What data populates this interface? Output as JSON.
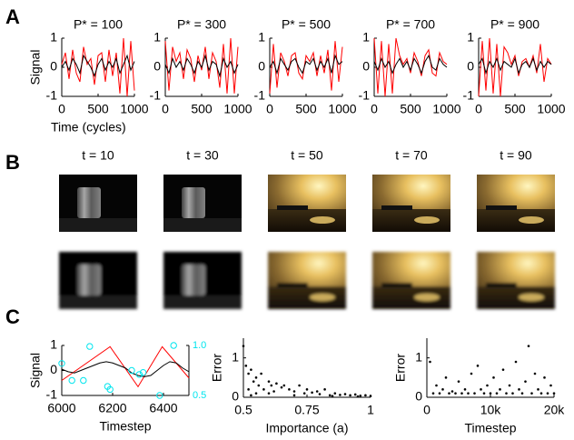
{
  "panel_labels": [
    "A",
    "B",
    "C"
  ],
  "image_panel": {
    "titles": [
      "t = 10",
      "t = 30",
      "t = 50",
      "t = 70",
      "t = 90"
    ]
  },
  "chart_data": [
    {
      "type": "line",
      "title": "P* = 100",
      "ylabel": "Signal",
      "xlabel": "Time (cycles)",
      "xlim": [
        0,
        1000
      ],
      "ylim": [
        -1,
        1
      ],
      "xticks": [
        0,
        500,
        1000
      ],
      "yticks": [
        -1,
        0,
        1
      ],
      "series": [
        {
          "color": "#ff0000",
          "x": [
            0,
            50,
            100,
            150,
            200,
            250,
            300,
            350,
            400,
            450,
            500,
            550,
            600,
            650,
            700,
            750,
            800,
            850,
            900,
            950,
            1000
          ],
          "values": [
            0.1,
            0.5,
            -0.4,
            0.6,
            -0.2,
            -0.5,
            0.7,
            0.1,
            0.3,
            -0.6,
            0.4,
            0.5,
            -0.5,
            0.6,
            -0.3,
            0.5,
            -0.9,
            1,
            -1,
            0.9,
            -0.8
          ]
        },
        {
          "color": "#000000",
          "x": [
            0,
            50,
            100,
            150,
            200,
            250,
            300,
            350,
            400,
            450,
            500,
            550,
            600,
            650,
            700,
            750,
            800,
            850,
            900,
            950,
            1000
          ],
          "values": [
            0,
            0.2,
            -0.1,
            0.3,
            0.1,
            -0.2,
            0.4,
            0.2,
            0,
            -0.3,
            0.1,
            0.3,
            -0.1,
            0.2,
            0,
            0.3,
            -0.2,
            0.1,
            0.4,
            -0.1,
            0.2
          ]
        }
      ]
    },
    {
      "type": "line",
      "title": "P* = 300",
      "xlim": [
        0,
        1000
      ],
      "ylim": [
        -1,
        1
      ],
      "xticks": [
        0,
        500,
        1000
      ],
      "yticks": [
        -1,
        0,
        1
      ],
      "series": [
        {
          "color": "#ff0000",
          "x": [
            0,
            50,
            100,
            150,
            200,
            250,
            300,
            350,
            400,
            450,
            500,
            550,
            600,
            650,
            700,
            750,
            800,
            850,
            900,
            950,
            1000
          ],
          "values": [
            0.9,
            -0.8,
            0.7,
            0.2,
            0.5,
            -0.4,
            0.6,
            0.3,
            -0.5,
            0.4,
            -0.1,
            0.7,
            -0.4,
            0.5,
            0.2,
            -0.7,
            0.8,
            -0.9,
            1,
            -0.9,
            0.7
          ]
        },
        {
          "color": "#000000",
          "x": [
            0,
            50,
            100,
            150,
            200,
            250,
            300,
            350,
            400,
            450,
            500,
            550,
            600,
            650,
            700,
            750,
            800,
            850,
            900,
            950,
            1000
          ],
          "values": [
            0.1,
            -0.2,
            0.3,
            0,
            0.2,
            -0.1,
            0.3,
            0.1,
            -0.2,
            0.2,
            0,
            0.4,
            -0.1,
            0.2,
            0.1,
            -0.3,
            0.3,
            0,
            0.2,
            -0.2,
            0.1
          ]
        }
      ]
    },
    {
      "type": "line",
      "title": "P* = 500",
      "xlim": [
        0,
        1000
      ],
      "ylim": [
        -1,
        1
      ],
      "xticks": [
        0,
        500,
        1000
      ],
      "yticks": [
        -1,
        0,
        1
      ],
      "series": [
        {
          "color": "#ff0000",
          "x": [
            0,
            50,
            100,
            150,
            200,
            250,
            300,
            350,
            400,
            450,
            500,
            550,
            600,
            650,
            700,
            750,
            800,
            850,
            900,
            950,
            1000
          ],
          "values": [
            -0.9,
            0.8,
            -0.7,
            0.5,
            0.2,
            -0.3,
            0.4,
            0.5,
            -0.2,
            -0.4,
            0.4,
            0.2,
            0.5,
            -0.3,
            0.4,
            -0.2,
            0.6,
            -0.8,
            0.9,
            -0.5,
            0.7
          ]
        },
        {
          "color": "#000000",
          "x": [
            0,
            50,
            100,
            150,
            200,
            250,
            300,
            350,
            400,
            450,
            500,
            550,
            600,
            650,
            700,
            750,
            800,
            850,
            900,
            950,
            1000
          ],
          "values": [
            0,
            0.2,
            -0.2,
            0.3,
            0.1,
            -0.1,
            0.2,
            0.3,
            0,
            -0.2,
            0.2,
            0.1,
            0.3,
            -0.1,
            0.2,
            0,
            0.3,
            -0.2,
            0.4,
            0.1,
            0.2
          ]
        }
      ]
    },
    {
      "type": "line",
      "title": "P* = 700",
      "xlim": [
        0,
        1000
      ],
      "ylim": [
        -1,
        1
      ],
      "xticks": [
        0,
        500,
        1000
      ],
      "yticks": [
        -1,
        0,
        1
      ],
      "series": [
        {
          "color": "#ff0000",
          "x": [
            0,
            50,
            100,
            150,
            200,
            250,
            300,
            350,
            400,
            450,
            500,
            550,
            600,
            650,
            700,
            750,
            800,
            850,
            900,
            950,
            1000
          ],
          "values": [
            1,
            -0.9,
            0.9,
            -1,
            0.8,
            -0.9,
            1,
            0.4,
            0.1,
            0.3,
            -0.2,
            0.5,
            0.2,
            -0.3,
            0.4,
            0.6,
            -0.2,
            -0.3,
            0.5,
            0.2,
            0.1
          ]
        },
        {
          "color": "#000000",
          "x": [
            0,
            50,
            100,
            150,
            200,
            250,
            300,
            350,
            400,
            450,
            500,
            550,
            600,
            650,
            700,
            750,
            800,
            850,
            900,
            950,
            1000
          ],
          "values": [
            0.2,
            -0.1,
            0.3,
            0,
            0.2,
            -0.2,
            0.1,
            0.3,
            0,
            0.2,
            -0.1,
            0.3,
            0.1,
            -0.2,
            0.2,
            0.4,
            0,
            -0.1,
            0.3,
            0.1,
            0
          ]
        }
      ]
    },
    {
      "type": "line",
      "title": "P* = 900",
      "xlim": [
        0,
        1000
      ],
      "ylim": [
        -1,
        1
      ],
      "xticks": [
        0,
        500,
        1000
      ],
      "yticks": [
        -1,
        0,
        1
      ],
      "series": [
        {
          "color": "#ff0000",
          "x": [
            0,
            50,
            100,
            150,
            200,
            250,
            300,
            350,
            400,
            450,
            500,
            550,
            600,
            650,
            700,
            750,
            800,
            850,
            900,
            950,
            1000
          ],
          "values": [
            -1,
            0.9,
            -0.8,
            1,
            -0.9,
            0.8,
            -1,
            0.7,
            0.5,
            0.1,
            0.4,
            -0.3,
            0.2,
            0.3,
            0,
            0.4,
            -0.2,
            0.8,
            -0.5,
            0.3,
            0.1
          ]
        },
        {
          "color": "#000000",
          "x": [
            0,
            50,
            100,
            150,
            200,
            250,
            300,
            350,
            400,
            450,
            500,
            550,
            600,
            650,
            700,
            750,
            800,
            850,
            900,
            950,
            1000
          ],
          "values": [
            0.1,
            0.3,
            -0.2,
            0.2,
            0,
            0.3,
            -0.1,
            0.2,
            0.1,
            0,
            0.3,
            -0.2,
            0.1,
            0.2,
            0,
            0.3,
            -0.1,
            0.2,
            0,
            0.2,
            0.1
          ]
        }
      ]
    },
    {
      "type": "line",
      "ylabel": "Signal",
      "xlabel": "Timestep",
      "xlim": [
        6000,
        6500
      ],
      "ylim": [
        -1,
        1
      ],
      "xticks": [
        6000,
        6200,
        6400
      ],
      "yticks": [
        -1,
        0,
        1
      ],
      "y2lim": [
        0.5,
        1
      ],
      "y2ticks": [
        0.5,
        {
          "value": 1,
          "label": "1.0"
        }
      ],
      "series": [
        {
          "color": "#ff0000",
          "x": [
            6000,
            6190,
            6300,
            6395,
            6500
          ],
          "values": [
            -0.4,
            0.95,
            -0.65,
            0.95,
            -0.3
          ]
        },
        {
          "color": "#000000",
          "x": [
            6000,
            6025,
            6050,
            6075,
            6100,
            6125,
            6150,
            6175,
            6200,
            6225,
            6250,
            6275,
            6300,
            6325,
            6350,
            6375,
            6400,
            6425,
            6450,
            6475,
            6500
          ],
          "values": [
            0.05,
            -0.05,
            -0.1,
            0,
            0.1,
            0.2,
            0.3,
            0.35,
            0.3,
            0.2,
            0.1,
            -0.1,
            -0.2,
            -0.25,
            -0.2,
            0,
            0.2,
            0.35,
            0.3,
            0.1,
            -0.05
          ]
        },
        {
          "color": "#00e5ee",
          "axis": "y2",
          "marker": "circle",
          "x": [
            6000,
            6040,
            6085,
            6110,
            6180,
            6190,
            6275,
            6305,
            6320,
            6385,
            6440
          ],
          "values": [
            0.82,
            0.65,
            0.65,
            0.99,
            0.59,
            0.56,
            0.75,
            0.71,
            0.73,
            0.5,
            1
          ]
        }
      ]
    },
    {
      "type": "scatter",
      "ylabel": "Error",
      "xlabel": "Importance (a)",
      "xlim": [
        0.5,
        1
      ],
      "ylim": [
        0,
        1.5
      ],
      "xticks": [
        0.5,
        0.75,
        1
      ],
      "yticks": [
        0,
        1
      ],
      "color": "#000000",
      "x": [
        0.5,
        0.51,
        0.52,
        0.52,
        0.53,
        0.54,
        0.55,
        0.56,
        0.57,
        0.58,
        0.6,
        0.61,
        0.62,
        0.63,
        0.65,
        0.66,
        0.68,
        0.7,
        0.72,
        0.74,
        0.75,
        0.77,
        0.79,
        0.8,
        0.82,
        0.84,
        0.86,
        0.88,
        0.9,
        0.92,
        0.94,
        0.96,
        0.98,
        1,
        0.55,
        0.6,
        0.7,
        0.85,
        0.95,
        0.53
      ],
      "values": [
        1.3,
        0.8,
        0.6,
        0.2,
        0.7,
        0.4,
        0.5,
        0.3,
        0.6,
        0.2,
        0.4,
        0.3,
        0.15,
        0.35,
        0.25,
        0.3,
        0.2,
        0.15,
        0.3,
        0.1,
        0.2,
        0.12,
        0.15,
        0.08,
        0.2,
        0.05,
        0.1,
        0.06,
        0.08,
        0.05,
        0.07,
        0.04,
        0.05,
        0.03,
        0.1,
        0.1,
        0.05,
        0.03,
        0.02,
        0.05
      ]
    },
    {
      "type": "scatter",
      "ylabel": "Error",
      "xlabel": "Timestep",
      "xlim": [
        0,
        20000
      ],
      "ylim": [
        0,
        1.5
      ],
      "xticks": [
        0,
        {
          "value": 10000,
          "label": "10k"
        },
        {
          "value": 20000,
          "label": "20k"
        }
      ],
      "yticks": [
        0,
        1
      ],
      "color": "#000000",
      "x": [
        500,
        1000,
        1500,
        2000,
        2500,
        3000,
        3500,
        4000,
        4500,
        5000,
        5500,
        6000,
        6500,
        7000,
        7500,
        8000,
        8500,
        9000,
        9500,
        10000,
        10500,
        11000,
        11500,
        12000,
        12500,
        13000,
        13500,
        14000,
        14500,
        15000,
        15500,
        16000,
        16500,
        17000,
        17500,
        18000,
        18500,
        19000,
        19500,
        20000
      ],
      "values": [
        0.9,
        0.1,
        0.3,
        0.1,
        0.2,
        0.5,
        0.1,
        0.15,
        0.1,
        0.4,
        0.1,
        0.2,
        0.1,
        0.6,
        0.1,
        0.8,
        0.2,
        0.1,
        0.3,
        0.1,
        0.5,
        0.1,
        0.2,
        0.7,
        0.1,
        0.3,
        0.1,
        0.9,
        0.2,
        0.1,
        0.4,
        1.3,
        0.1,
        0.6,
        0.2,
        0.1,
        0.5,
        0.1,
        0.3,
        0.1
      ]
    }
  ]
}
